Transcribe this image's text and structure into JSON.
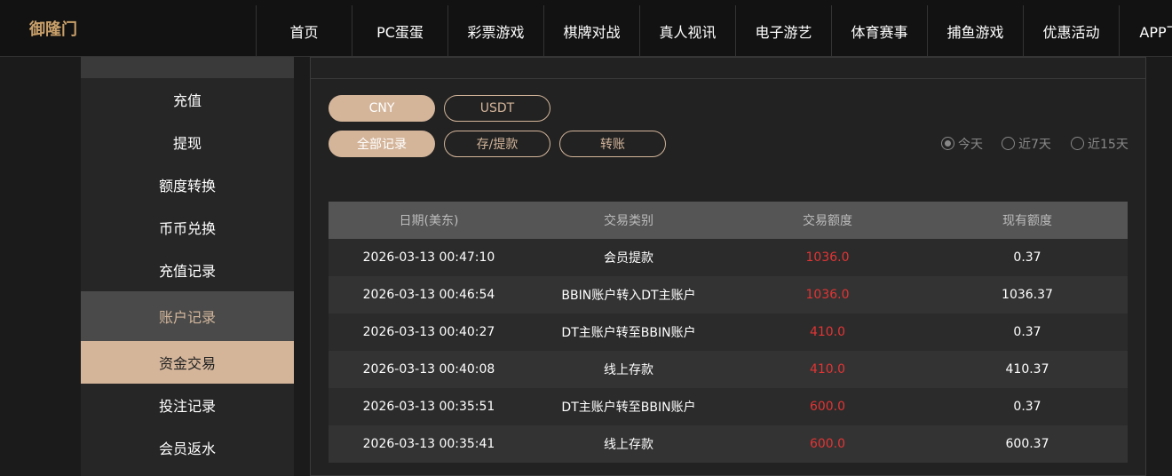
{
  "header": {
    "logo": "御隆门",
    "nav": [
      "首页",
      "PC蛋蛋",
      "彩票游戏",
      "棋牌对战",
      "真人视讯",
      "电子游艺",
      "体育赛事",
      "捕鱼游戏",
      "优惠活动",
      "APP下载"
    ]
  },
  "sidebar": {
    "items_top": [
      "充值",
      "提现",
      "额度转换",
      "币币兑换",
      "充值记录"
    ],
    "section": "账户记录",
    "items_bottom": [
      "资金交易",
      "投注记录",
      "会员返水"
    ],
    "active": "资金交易"
  },
  "filters": {
    "currencies": [
      "CNY",
      "USDT"
    ],
    "active_currency": "CNY",
    "types": [
      "全部记录",
      "存/提款",
      "转账"
    ],
    "active_type": "全部记录",
    "ranges": [
      "今天",
      "近7天",
      "近15天"
    ],
    "active_range": "今天"
  },
  "table": {
    "headers": [
      "日期(美东)",
      "交易类别",
      "交易额度",
      "现有额度"
    ],
    "rows": [
      [
        "2026-03-13 00:47:10",
        "会员提款",
        "1036.0",
        "0.37"
      ],
      [
        "2026-03-13 00:46:54",
        "BBIN账户转入DT主账户",
        "1036.0",
        "1036.37"
      ],
      [
        "2026-03-13 00:40:27",
        "DT主账户转至BBIN账户",
        "410.0",
        "0.37"
      ],
      [
        "2026-03-13 00:40:08",
        "线上存款",
        "410.0",
        "410.37"
      ],
      [
        "2026-03-13 00:35:51",
        "DT主账户转至BBIN账户",
        "600.0",
        "0.37"
      ],
      [
        "2026-03-13 00:35:41",
        "线上存款",
        "600.0",
        "600.37"
      ]
    ]
  }
}
